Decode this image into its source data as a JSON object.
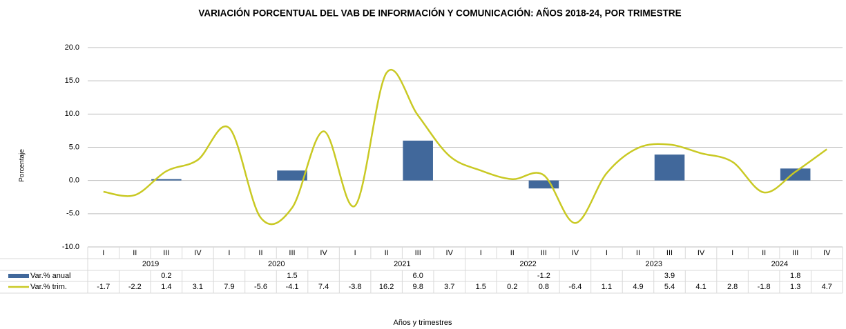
{
  "chart_data": {
    "type": "bar_line",
    "title": "VARIACIÓN PORCENTUAL DEL VAB DE INFORMACIÓN Y COMUNICACIÓN: AÑOS 2018-24, POR TRIMESTRE",
    "y_label": "Porcentaje",
    "x_label": "Años y trimestres",
    "categories": [
      "I",
      "II",
      "III",
      "IV",
      "I",
      "II",
      "III",
      "IV",
      "I",
      "II",
      "III",
      "IV",
      "I",
      "II",
      "III",
      "IV",
      "I",
      "II",
      "III",
      "IV",
      "I",
      "II",
      "III",
      "IV"
    ],
    "category_groups": [
      "2019",
      "2020",
      "2021",
      "2022",
      "2023",
      "2024"
    ],
    "series": [
      {
        "name": "Var.% anual",
        "type": "bar",
        "color": "#41689b",
        "values": [
          null,
          null,
          0.2,
          null,
          null,
          null,
          1.5,
          null,
          null,
          null,
          6.0,
          null,
          null,
          null,
          -1.2,
          null,
          null,
          null,
          3.9,
          null,
          null,
          null,
          1.8,
          null
        ],
        "value_labels": [
          null,
          null,
          "0.2",
          null,
          null,
          null,
          "1.5",
          null,
          null,
          null,
          "6.0",
          null,
          null,
          null,
          "-1.2",
          null,
          null,
          null,
          "3.9",
          null,
          null,
          null,
          "1.8",
          null
        ]
      },
      {
        "name": "Var.% trim.",
        "type": "line",
        "color": "#c9c924",
        "values": [
          -1.7,
          -2.2,
          1.4,
          3.1,
          7.9,
          -5.6,
          -4.1,
          7.4,
          -3.8,
          16.2,
          9.8,
          3.7,
          1.5,
          0.2,
          0.8,
          -6.4,
          1.1,
          4.9,
          5.4,
          4.1,
          2.8,
          -1.8,
          1.3,
          4.7
        ]
      }
    ],
    "ylim": [
      -10,
      20
    ],
    "yticks": [
      {
        "value": -10,
        "label": "-10.0"
      },
      {
        "value": -5,
        "label": "-5.0"
      },
      {
        "value": 0,
        "label": "0.0"
      },
      {
        "value": 5,
        "label": "5.0"
      },
      {
        "value": 10,
        "label": "10.0"
      },
      {
        "value": 15,
        "label": "15.0"
      },
      {
        "value": 20,
        "label": "20.0"
      }
    ],
    "grid": true
  }
}
